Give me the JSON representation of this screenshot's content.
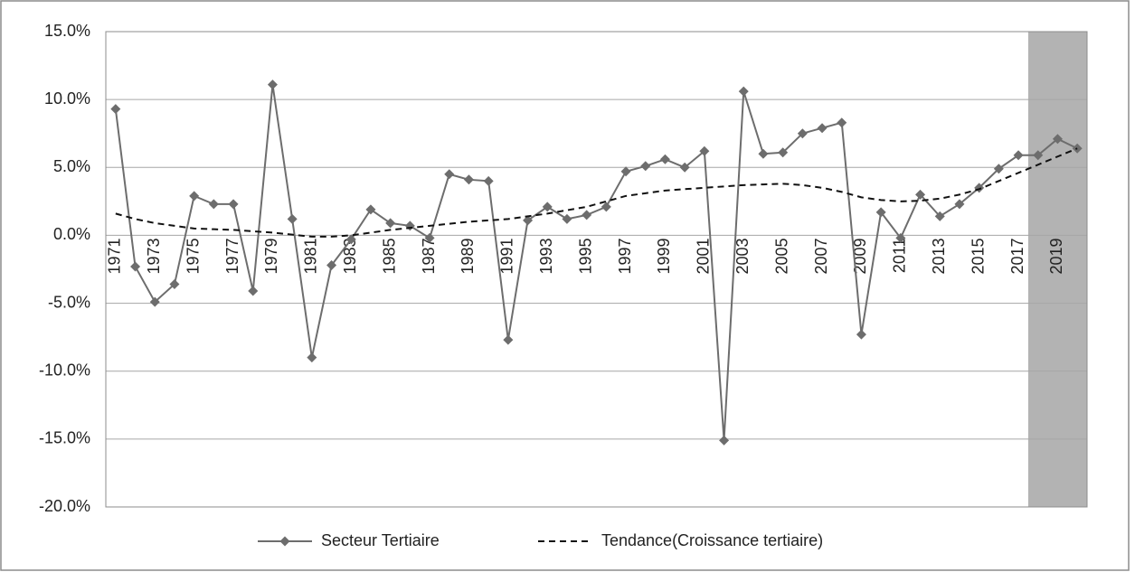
{
  "chart_data": {
    "type": "line",
    "categories": [
      "1971",
      null,
      "1973",
      null,
      "1975",
      null,
      "1977",
      null,
      "1979",
      null,
      "1981",
      null,
      "1983",
      null,
      "1985",
      null,
      "1987",
      null,
      "1989",
      null,
      "1991",
      null,
      "1993",
      null,
      "1995",
      null,
      "1997",
      null,
      "1999",
      null,
      "2001",
      null,
      "2003",
      null,
      "2005",
      null,
      "2007",
      null,
      "2009",
      null,
      "2011",
      null,
      "2013",
      null,
      "2015",
      null,
      "2017",
      null,
      "2019",
      null
    ],
    "series": [
      {
        "name": "Secteur Tertiaire",
        "color": "#6d6d6d",
        "marker": "diamond",
        "dashed": false,
        "values": [
          9.3,
          -2.3,
          -4.9,
          -3.6,
          2.9,
          2.3,
          2.3,
          -4.1,
          11.1,
          1.2,
          -9.0,
          -2.2,
          -0.3,
          1.9,
          0.9,
          0.7,
          -0.2,
          4.5,
          4.1,
          4.0,
          -7.7,
          1.1,
          2.1,
          1.2,
          1.5,
          2.1,
          4.7,
          5.1,
          5.6,
          5.0,
          6.2,
          -15.1,
          10.6,
          6.0,
          6.1,
          7.5,
          7.9,
          8.3,
          -7.3,
          1.7,
          -0.2,
          3.0,
          1.4,
          2.3,
          3.5,
          4.9,
          5.9,
          5.9,
          7.1,
          6.4
        ]
      },
      {
        "name": "Tendance(Croissance tertiaire)",
        "color": "#111111",
        "marker": "none",
        "dashed": true,
        "values": [
          1.6,
          1.2,
          0.9,
          0.7,
          0.5,
          0.45,
          0.4,
          0.3,
          0.2,
          0.05,
          -0.1,
          -0.1,
          0.0,
          0.2,
          0.4,
          0.55,
          0.7,
          0.85,
          1.0,
          1.1,
          1.2,
          1.4,
          1.6,
          1.85,
          2.1,
          2.5,
          2.9,
          3.1,
          3.3,
          3.4,
          3.5,
          3.6,
          3.7,
          3.75,
          3.8,
          3.7,
          3.5,
          3.2,
          2.8,
          2.6,
          2.5,
          2.55,
          2.7,
          3.0,
          3.4,
          4.0,
          4.6,
          5.2,
          5.8,
          6.4
        ]
      }
    ],
    "ylim": [
      -20,
      15
    ],
    "yticks": [
      {
        "value": -20,
        "label": "-20.0%"
      },
      {
        "value": -15,
        "label": "-15.0%"
      },
      {
        "value": -10,
        "label": "-10.0%"
      },
      {
        "value": -5,
        "label": "-5.0%"
      },
      {
        "value": 0,
        "label": "0.0%"
      },
      {
        "value": 5,
        "label": "5.0%"
      },
      {
        "value": 10,
        "label": "10.0%"
      },
      {
        "value": 15,
        "label": "15.0%"
      }
    ],
    "grid": true,
    "legend": "bottom",
    "shaded_categories": [
      47,
      49
    ],
    "shade_color": "#b3b3b3"
  }
}
